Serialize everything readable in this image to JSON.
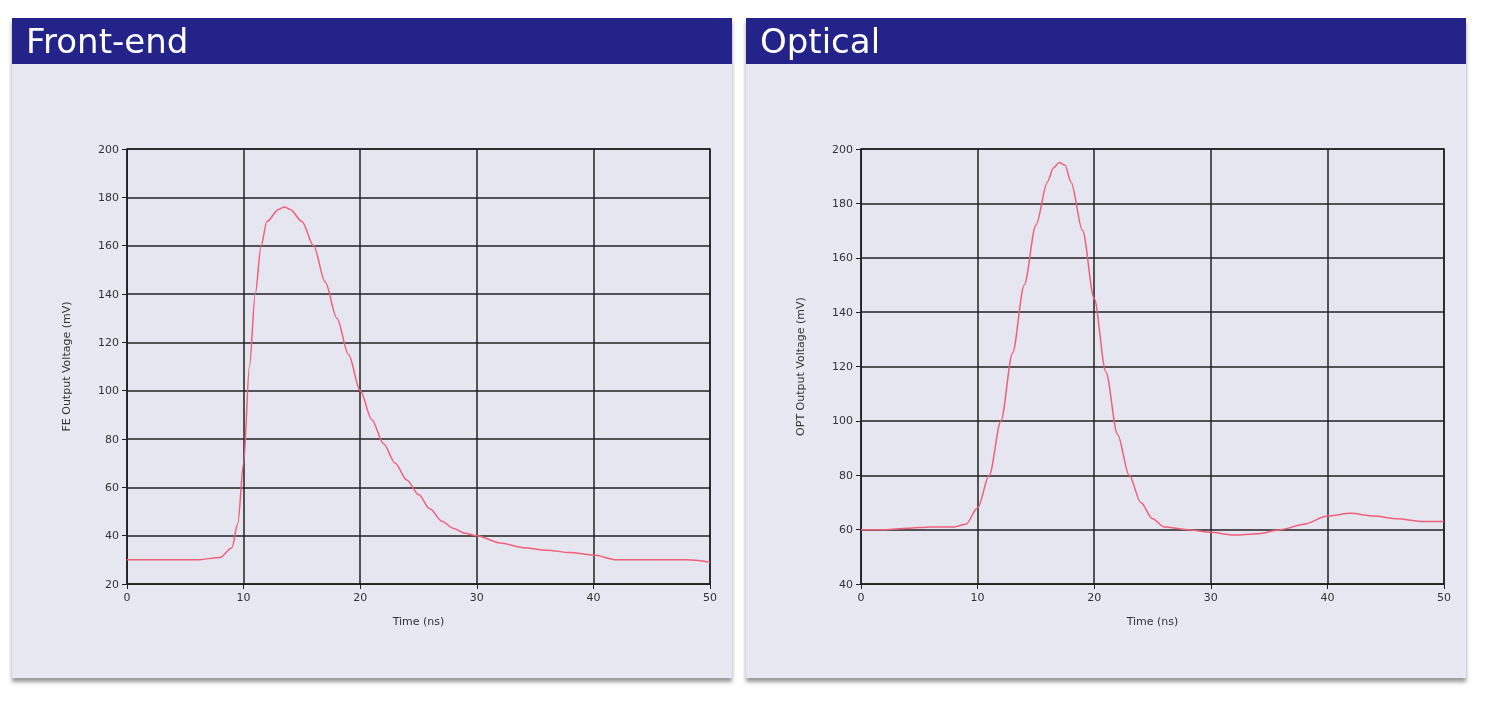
{
  "chart_data": [
    {
      "type": "line",
      "title": "Front-end",
      "xlabel": "Time (ns)",
      "ylabel": "FE Output Voltage (mV)",
      "xlim": [
        0,
        50
      ],
      "xticks": [
        0,
        10,
        20,
        30,
        40,
        50
      ],
      "ylim": [
        20,
        200
      ],
      "yticks": [
        20,
        40,
        60,
        80,
        100,
        120,
        140,
        160,
        180,
        200
      ],
      "grid": true,
      "marker": "none",
      "line_style": "solid",
      "series": [
        {
          "color": "#f0607a",
          "x": [
            0,
            2,
            4,
            6,
            8,
            9,
            9.5,
            10,
            10.5,
            11,
            11.5,
            12,
            13,
            13.5,
            14,
            15,
            16,
            17,
            18,
            19,
            20,
            21,
            22,
            23,
            24,
            25,
            26,
            27,
            28,
            29,
            30,
            32,
            34,
            36,
            38,
            40,
            42,
            44,
            46,
            48,
            50
          ],
          "values": [
            30,
            30,
            30,
            30,
            31,
            35,
            45,
            70,
            110,
            140,
            160,
            170,
            175,
            176,
            175,
            170,
            160,
            145,
            130,
            115,
            100,
            88,
            78,
            70,
            63,
            57,
            51,
            46,
            43,
            41,
            40,
            37,
            35,
            34,
            33,
            32,
            30,
            30,
            30,
            30,
            29
          ]
        }
      ]
    },
    {
      "type": "line",
      "title": "Optical",
      "xlabel": "Time (ns)",
      "ylabel": "OPT Output Voltage (mV)",
      "xlim": [
        0,
        50
      ],
      "xticks": [
        0,
        10,
        20,
        30,
        40,
        50
      ],
      "ylim": [
        40,
        200
      ],
      "yticks": [
        40,
        60,
        80,
        100,
        120,
        140,
        160,
        180,
        200
      ],
      "grid": true,
      "marker": "none",
      "line_style": "solid",
      "series": [
        {
          "color": "#f0607a",
          "x": [
            0,
            2,
            4,
            6,
            8,
            9,
            10,
            11,
            12,
            13,
            14,
            15,
            16,
            16.5,
            17,
            17.5,
            18,
            19,
            20,
            21,
            22,
            23,
            24,
            25,
            26,
            28,
            30,
            32,
            34,
            36,
            38,
            40,
            42,
            44,
            46,
            48,
            50
          ],
          "values": [
            60,
            60,
            60.5,
            61,
            61,
            62,
            68,
            80,
            100,
            125,
            150,
            172,
            188,
            193,
            195,
            194,
            188,
            170,
            145,
            118,
            95,
            80,
            70,
            64,
            61,
            60,
            59,
            58,
            58.5,
            60,
            62,
            65,
            66,
            65,
            64,
            63,
            63
          ]
        }
      ]
    }
  ]
}
